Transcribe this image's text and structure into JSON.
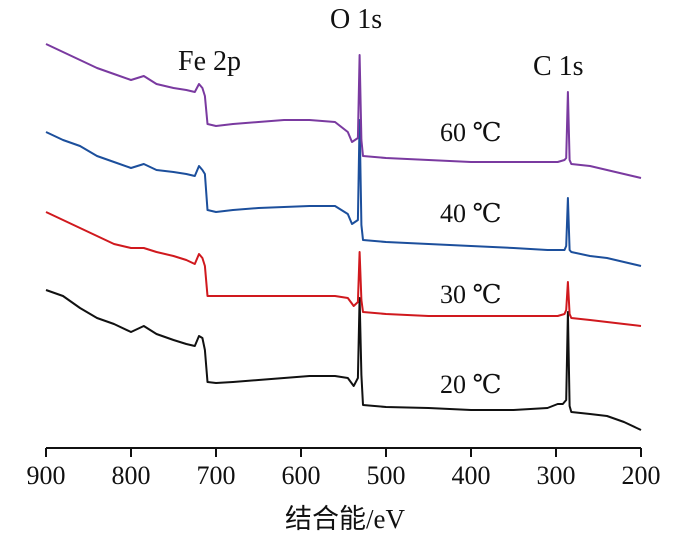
{
  "chart_data": {
    "type": "line",
    "title": "",
    "xlabel": "结合能/eV",
    "ylabel": "",
    "xlim": [
      900,
      200
    ],
    "x_reversed": true,
    "xticks": [
      900,
      800,
      700,
      600,
      500,
      400,
      300,
      200
    ],
    "xtick_labels": [
      "900",
      "800",
      "700",
      "600",
      "500",
      "400",
      "300",
      "200"
    ],
    "y_axis_shown": false,
    "grid": false,
    "annotations": [
      {
        "text": "Fe 2p",
        "x": 710
      },
      {
        "text": "O 1s",
        "x": 531
      },
      {
        "text": "C 1s",
        "x": 285
      }
    ],
    "series": [
      {
        "name": "20 ℃",
        "color": "#111111",
        "points": [
          [
            900,
            290
          ],
          [
            880,
            296
          ],
          [
            860,
            308
          ],
          [
            840,
            318
          ],
          [
            820,
            324
          ],
          [
            800,
            332
          ],
          [
            785,
            326
          ],
          [
            770,
            334
          ],
          [
            750,
            340
          ],
          [
            735,
            344
          ],
          [
            725,
            346
          ],
          [
            720,
            336
          ],
          [
            716,
            338
          ],
          [
            713,
            350
          ],
          [
            710,
            382
          ],
          [
            700,
            383
          ],
          [
            680,
            382
          ],
          [
            650,
            380
          ],
          [
            620,
            378
          ],
          [
            590,
            376
          ],
          [
            560,
            376
          ],
          [
            545,
            378
          ],
          [
            538,
            386
          ],
          [
            533,
            378
          ],
          [
            531,
            298
          ],
          [
            529,
            375
          ],
          [
            527,
            405
          ],
          [
            500,
            407
          ],
          [
            450,
            408
          ],
          [
            400,
            410
          ],
          [
            350,
            410
          ],
          [
            310,
            408
          ],
          [
            298,
            404
          ],
          [
            292,
            404
          ],
          [
            288,
            400
          ],
          [
            286,
            312
          ],
          [
            284,
            406
          ],
          [
            282,
            412
          ],
          [
            260,
            414
          ],
          [
            240,
            416
          ],
          [
            220,
            422
          ],
          [
            200,
            430
          ]
        ]
      },
      {
        "name": "30 ℃",
        "color": "#d0191e",
        "points": [
          [
            900,
            212
          ],
          [
            880,
            220
          ],
          [
            860,
            228
          ],
          [
            840,
            236
          ],
          [
            820,
            244
          ],
          [
            800,
            248
          ],
          [
            785,
            248
          ],
          [
            770,
            252
          ],
          [
            750,
            256
          ],
          [
            735,
            260
          ],
          [
            725,
            264
          ],
          [
            720,
            254
          ],
          [
            716,
            258
          ],
          [
            713,
            266
          ],
          [
            710,
            296
          ],
          [
            700,
            296
          ],
          [
            680,
            296
          ],
          [
            650,
            296
          ],
          [
            620,
            296
          ],
          [
            590,
            296
          ],
          [
            560,
            296
          ],
          [
            545,
            298
          ],
          [
            538,
            306
          ],
          [
            533,
            302
          ],
          [
            531,
            252
          ],
          [
            529,
            300
          ],
          [
            527,
            312
          ],
          [
            500,
            314
          ],
          [
            450,
            316
          ],
          [
            400,
            316
          ],
          [
            350,
            316
          ],
          [
            310,
            316
          ],
          [
            298,
            316
          ],
          [
            290,
            314
          ],
          [
            288,
            310
          ],
          [
            286,
            282
          ],
          [
            284,
            314
          ],
          [
            282,
            318
          ],
          [
            260,
            320
          ],
          [
            240,
            322
          ],
          [
            220,
            324
          ],
          [
            200,
            326
          ]
        ]
      },
      {
        "name": "40 ℃",
        "color": "#1c4f9c",
        "points": [
          [
            900,
            132
          ],
          [
            880,
            140
          ],
          [
            860,
            146
          ],
          [
            840,
            156
          ],
          [
            820,
            162
          ],
          [
            800,
            168
          ],
          [
            785,
            164
          ],
          [
            770,
            170
          ],
          [
            750,
            172
          ],
          [
            735,
            174
          ],
          [
            725,
            176
          ],
          [
            720,
            166
          ],
          [
            716,
            170
          ],
          [
            713,
            174
          ],
          [
            710,
            210
          ],
          [
            700,
            212
          ],
          [
            680,
            210
          ],
          [
            650,
            208
          ],
          [
            620,
            207
          ],
          [
            590,
            206
          ],
          [
            560,
            206
          ],
          [
            545,
            214
          ],
          [
            540,
            224
          ],
          [
            533,
            220
          ],
          [
            531,
            120
          ],
          [
            529,
            225
          ],
          [
            527,
            240
          ],
          [
            500,
            242
          ],
          [
            450,
            244
          ],
          [
            400,
            246
          ],
          [
            350,
            248
          ],
          [
            310,
            250
          ],
          [
            298,
            250
          ],
          [
            290,
            250
          ],
          [
            288,
            246
          ],
          [
            286,
            198
          ],
          [
            284,
            250
          ],
          [
            282,
            252
          ],
          [
            260,
            256
          ],
          [
            240,
            258
          ],
          [
            220,
            262
          ],
          [
            200,
            266
          ]
        ]
      },
      {
        "name": "60 ℃",
        "color": "#7a3aa0",
        "points": [
          [
            900,
            44
          ],
          [
            880,
            52
          ],
          [
            860,
            60
          ],
          [
            840,
            68
          ],
          [
            820,
            74
          ],
          [
            800,
            80
          ],
          [
            785,
            76
          ],
          [
            770,
            84
          ],
          [
            750,
            88
          ],
          [
            735,
            90
          ],
          [
            725,
            92
          ],
          [
            720,
            84
          ],
          [
            716,
            88
          ],
          [
            713,
            96
          ],
          [
            710,
            124
          ],
          [
            700,
            126
          ],
          [
            680,
            124
          ],
          [
            650,
            122
          ],
          [
            620,
            120
          ],
          [
            590,
            120
          ],
          [
            560,
            122
          ],
          [
            545,
            132
          ],
          [
            540,
            142
          ],
          [
            533,
            138
          ],
          [
            531,
            55
          ],
          [
            529,
            140
          ],
          [
            527,
            156
          ],
          [
            500,
            158
          ],
          [
            450,
            160
          ],
          [
            400,
            162
          ],
          [
            350,
            162
          ],
          [
            310,
            162
          ],
          [
            298,
            162
          ],
          [
            290,
            160
          ],
          [
            288,
            158
          ],
          [
            286,
            92
          ],
          [
            284,
            160
          ],
          [
            282,
            164
          ],
          [
            260,
            166
          ],
          [
            240,
            170
          ],
          [
            220,
            174
          ],
          [
            200,
            178
          ]
        ]
      }
    ]
  }
}
